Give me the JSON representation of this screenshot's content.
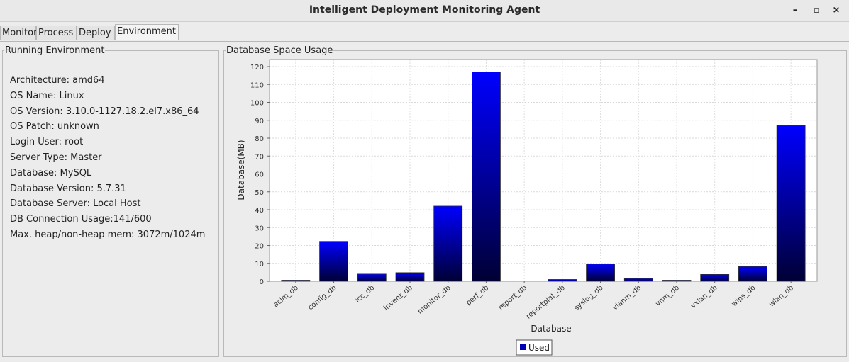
{
  "window": {
    "title": "Intelligent Deployment Monitoring Agent",
    "minimize_label": "–",
    "maximize_label": "▫",
    "close_label": "×"
  },
  "tabs": [
    {
      "label": "Monitor",
      "active": false
    },
    {
      "label": "Process",
      "active": false
    },
    {
      "label": "Deploy",
      "active": false
    },
    {
      "label": "Environment",
      "active": true
    }
  ],
  "environment": {
    "title": "Running Environment",
    "items": [
      "Architecture: amd64",
      "OS Name: Linux",
      "OS Version: 3.10.0-1127.18.2.el7.x86_64",
      "OS Patch: unknown",
      "Login User: root",
      "Server Type: Master",
      "Database: MySQL",
      "Database Version: 5.7.31",
      "Database Server: Local Host",
      "DB Connection Usage:141/600",
      "Max. heap/non-heap mem: 3072m/1024m"
    ]
  },
  "database_panel": {
    "title": "Database Space Usage"
  },
  "chart_data": {
    "type": "bar",
    "title": "",
    "xlabel": "Database",
    "ylabel": "Database(MB)",
    "ylim": [
      0,
      120
    ],
    "yticks": [
      0,
      10,
      20,
      30,
      40,
      50,
      60,
      70,
      80,
      90,
      100,
      110,
      120
    ],
    "grid": true,
    "legend_position": "bottom-center",
    "categories": [
      "aclm_db",
      "config_db",
      "icc_db",
      "invent_db",
      "monitor_db",
      "perf_db",
      "report_db",
      "reportplat_db",
      "syslog_db",
      "vlanm_db",
      "vnm_db",
      "vxlan_db",
      "wips_db",
      "wlan_db"
    ],
    "series": [
      {
        "name": "Used",
        "color": "#0000ff",
        "values": [
          0.6,
          22.3,
          4.0,
          4.8,
          42.0,
          117.0,
          0.0,
          1.0,
          9.6,
          1.5,
          0.6,
          3.8,
          8.2,
          87.1
        ]
      }
    ]
  }
}
